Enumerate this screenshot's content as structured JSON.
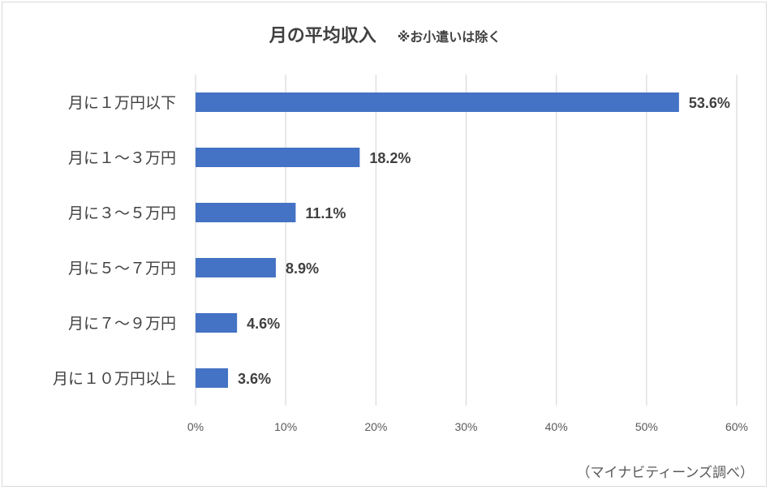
{
  "chart_data": {
    "type": "bar",
    "orientation": "horizontal",
    "title": "月の平均収入",
    "subtitle": "※お小遣いは除く",
    "categories": [
      "月に１万円以下",
      "月に１～３万円",
      "月に３～５万円",
      "月に５～７万円",
      "月に７～９万円",
      "月に１０万円以上"
    ],
    "values": [
      53.6,
      18.2,
      11.1,
      8.9,
      4.6,
      3.6
    ],
    "data_labels": [
      "53.6%",
      "18.2%",
      "11.1%",
      "8.9%",
      "4.6%",
      "3.6%"
    ],
    "xlim": [
      0,
      60
    ],
    "xticks": [
      "0%",
      "10%",
      "20%",
      "30%",
      "40%",
      "50%",
      "60%"
    ],
    "grid": true,
    "bar_color": "#4472c4",
    "grid_color": "#d9d9d9",
    "source": "（マイナビティーンズ調べ）"
  }
}
